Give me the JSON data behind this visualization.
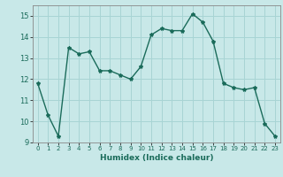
{
  "x": [
    0,
    1,
    2,
    3,
    4,
    5,
    6,
    7,
    8,
    9,
    10,
    11,
    12,
    13,
    14,
    15,
    16,
    17,
    18,
    19,
    20,
    21,
    22,
    23
  ],
  "y": [
    11.8,
    10.3,
    9.3,
    13.5,
    13.2,
    13.3,
    12.4,
    12.4,
    12.2,
    12.0,
    12.6,
    14.1,
    14.4,
    14.3,
    14.3,
    15.1,
    14.7,
    13.8,
    11.8,
    11.6,
    11.5,
    11.6,
    9.9,
    9.3
  ],
  "line_color": "#1a6b5a",
  "marker": "*",
  "marker_size": 3,
  "bg_color": "#c8e8e8",
  "grid_color": "#a8d4d4",
  "xlabel": "Humidex (Indice chaleur)",
  "xlim": [
    -0.5,
    23.5
  ],
  "ylim": [
    9,
    15.5
  ],
  "yticks": [
    9,
    10,
    11,
    12,
    13,
    14,
    15
  ],
  "xticks": [
    0,
    1,
    2,
    3,
    4,
    5,
    6,
    7,
    8,
    9,
    10,
    11,
    12,
    13,
    14,
    15,
    16,
    17,
    18,
    19,
    20,
    21,
    22,
    23
  ]
}
